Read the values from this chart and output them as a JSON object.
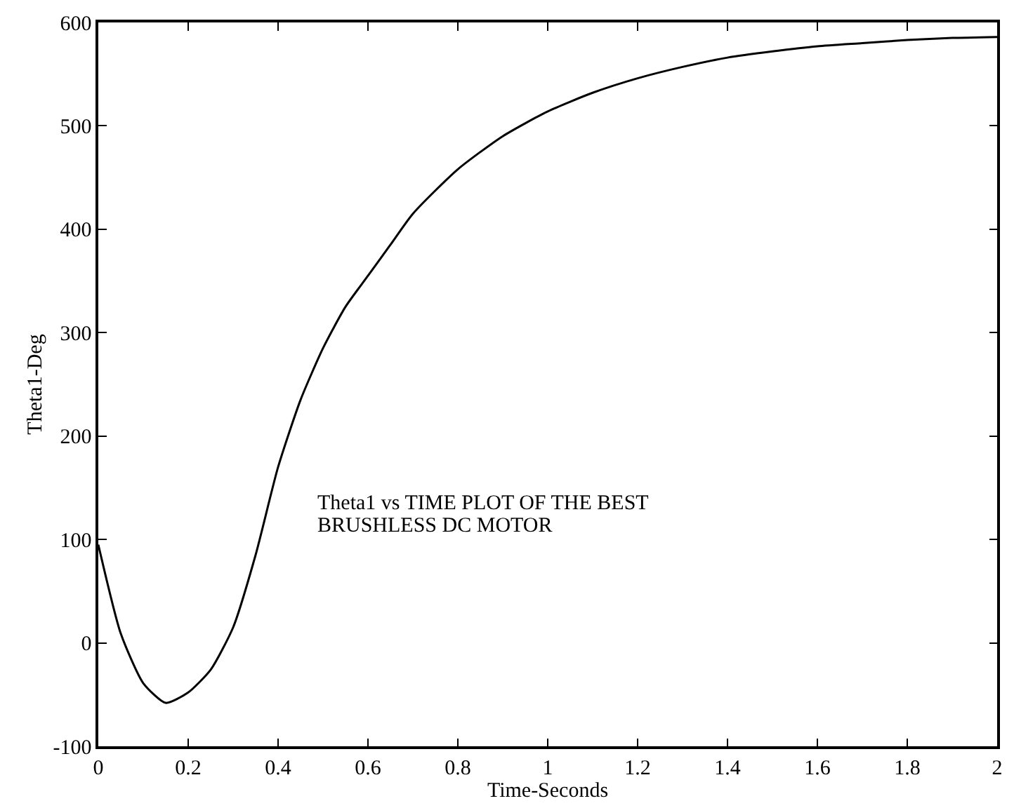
{
  "chart_data": {
    "type": "line",
    "xlabel": "Time-Seconds",
    "ylabel": "Theta1-Deg",
    "annotations": [
      "Theta1 vs TIME PLOT OF THE BEST",
      "BRUSHLESS DC MOTOR"
    ],
    "x": [
      0,
      0.05,
      0.1,
      0.15,
      0.2,
      0.25,
      0.3,
      0.35,
      0.4,
      0.45,
      0.5,
      0.55,
      0.6,
      0.65,
      0.7,
      0.8,
      0.9,
      1.0,
      1.1,
      1.2,
      1.3,
      1.4,
      1.5,
      1.6,
      1.7,
      1.8,
      1.9,
      2.0
    ],
    "series": [
      {
        "color": "#000000",
        "values": [
          95,
          9,
          -39,
          -58,
          -48,
          -26,
          15,
          85,
          170,
          235,
          285,
          325,
          355,
          385,
          415,
          458,
          490,
          514,
          532,
          546,
          557,
          566,
          572,
          577,
          580,
          583,
          585,
          586
        ]
      }
    ],
    "xlim": [
      0,
      2
    ],
    "ylim": [
      -100,
      600
    ],
    "xticks": [
      0,
      0.2,
      0.4,
      0.6,
      0.8,
      1,
      1.2,
      1.4,
      1.6,
      1.8,
      2
    ],
    "yticks": [
      -100,
      0,
      100,
      200,
      300,
      400,
      500,
      600
    ],
    "marker": "none",
    "line_style": "solid"
  }
}
